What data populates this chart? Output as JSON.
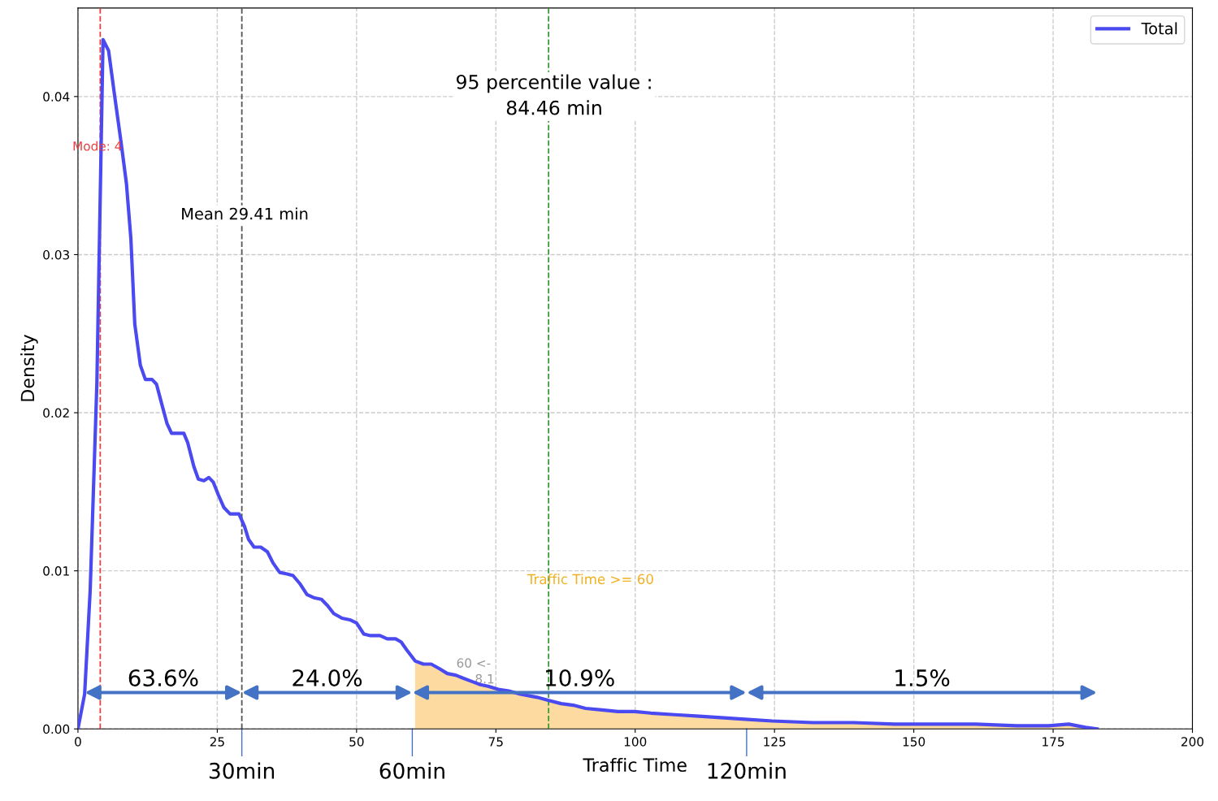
{
  "chart_data": {
    "type": "line",
    "xlabel": "Traffic Time",
    "ylabel": "Density",
    "xlim": [
      0,
      200
    ],
    "ylim": [
      0,
      0.0456
    ],
    "xticks": [
      0,
      25,
      50,
      75,
      100,
      125,
      150,
      175,
      200
    ],
    "yticks": [
      {
        "value": 0,
        "label": "0.00"
      },
      {
        "value": 0.01,
        "label": "0.01"
      },
      {
        "value": 0.02,
        "label": "0.02"
      },
      {
        "value": 0.03,
        "label": "0.03"
      },
      {
        "value": 0.04,
        "label": "0.04"
      }
    ],
    "grid": true,
    "legend": "top right",
    "series": [
      {
        "name": "Total",
        "color": "#4a4af0",
        "x": [
          0,
          1.2,
          2.2,
          3.4,
          4.5,
          5.5,
          6.6,
          7.7,
          8.7,
          9.5,
          10.2,
          11.2,
          12.1,
          13.3,
          14.1,
          15.0,
          16.0,
          16.8,
          19.0,
          19.7,
          20.8,
          21.6,
          22.6,
          23.5,
          24.3,
          25.2,
          26.2,
          27.3,
          28.9,
          29.9,
          30.6,
          31.6,
          32.8,
          34.0,
          35.0,
          36.2,
          37.5,
          38.6,
          39.8,
          41.1,
          42.3,
          43.7,
          44.8,
          45.9,
          47.4,
          48.8,
          50.0,
          51.3,
          52.5,
          54.2,
          55.5,
          57.0,
          58.0,
          59.0,
          60.5,
          62.0,
          63.4,
          64.9,
          66.3,
          67.8,
          69.2,
          70.7,
          72.2,
          73.6,
          75.4,
          77.3,
          79.4,
          82.4,
          84.5,
          86.7,
          88.9,
          91.1,
          94.0,
          96.9,
          99.9,
          102.8,
          107.1,
          111.5,
          115.9,
          120.3,
          124.6,
          131.9,
          139.2,
          146.5,
          153.8,
          161.1,
          168.4,
          174.2,
          177.8,
          179.3,
          180.8,
          182.9
        ],
        "values": [
          0,
          0.0022,
          0.0088,
          0.0219,
          0.0436,
          0.0429,
          0.04,
          0.0372,
          0.0345,
          0.031,
          0.0256,
          0.023,
          0.0221,
          0.0221,
          0.0218,
          0.0206,
          0.0193,
          0.0187,
          0.0187,
          0.0181,
          0.0166,
          0.0158,
          0.0157,
          0.0159,
          0.0156,
          0.0148,
          0.014,
          0.0136,
          0.0136,
          0.0128,
          0.012,
          0.0115,
          0.0115,
          0.0112,
          0.0105,
          0.0099,
          0.0098,
          0.0097,
          0.0092,
          0.0085,
          0.0083,
          0.0082,
          0.0078,
          0.0073,
          0.007,
          0.0069,
          0.0067,
          0.006,
          0.0059,
          0.0059,
          0.0057,
          0.0057,
          0.0055,
          0.005,
          0.0043,
          0.0041,
          0.0041,
          0.0038,
          0.0035,
          0.0034,
          0.0032,
          0.003,
          0.0028,
          0.0027,
          0.0025,
          0.0024,
          0.0022,
          0.002,
          0.0018,
          0.0016,
          0.0015,
          0.0013,
          0.0012,
          0.0011,
          0.0011,
          0.001,
          0.0009,
          0.0008,
          0.0007,
          0.0006,
          0.0005,
          0.0004,
          0.0004,
          0.0003,
          0.0003,
          0.0003,
          0.0002,
          0.0002,
          0.0003,
          0.0002,
          0.0001,
          0.0
        ]
      },
      {
        "type": "area",
        "color": "#fddba0",
        "x": [
          60.5,
          62.0,
          63.4,
          64.9,
          66.3,
          67.8,
          69.2,
          70.7,
          72.2,
          73.6,
          75.4,
          77.3,
          79.4,
          82.4,
          84.5,
          86.7,
          88.9,
          91.1,
          94.0,
          96.9,
          99.9,
          102.8,
          107.1,
          111.5,
          115.9,
          120.3,
          124.6,
          131.9,
          139.2,
          146.5,
          153.8,
          161.1,
          168.4,
          174.2,
          177.8,
          179.3,
          180.8,
          182.9
        ],
        "values": [
          0.0043,
          0.0041,
          0.0041,
          0.0038,
          0.0035,
          0.0034,
          0.0032,
          0.003,
          0.0028,
          0.0027,
          0.0025,
          0.0024,
          0.0022,
          0.002,
          0.0018,
          0.0016,
          0.0015,
          0.0013,
          0.0012,
          0.0011,
          0.0011,
          0.001,
          0.0009,
          0.0008,
          0.0007,
          0.0006,
          0.0005,
          0.0004,
          0.0004,
          0.0003,
          0.0003,
          0.0003,
          0.0002,
          0.0002,
          0.0003,
          0.0002,
          0.0001,
          0.0
        ]
      }
    ],
    "ref_lines": [
      {
        "axis": "x",
        "value": 4,
        "label": "Mode: 4",
        "color": "#e84040",
        "line_style": "dashed"
      },
      {
        "axis": "x",
        "value": 29.41,
        "label": "Mean 29.41 min",
        "color": "#555555",
        "line_style": "dashed"
      },
      {
        "axis": "x",
        "value": 84.46,
        "label": "95 percentile value :\n84.46 min",
        "color": "#3a9a3a",
        "line_style": "dashed"
      }
    ],
    "annotations": [
      "63.6%",
      "24.0%",
      "10.9%",
      "1.5%",
      "Traffic Time >= 60",
      "60 <-",
      "8.1",
      {
        "text": "30min",
        "x": 29.41,
        "y": 0
      },
      {
        "text": "60min",
        "x": 60,
        "y": 0
      },
      {
        "text": "120min",
        "x": 120,
        "y": 0
      }
    ]
  }
}
